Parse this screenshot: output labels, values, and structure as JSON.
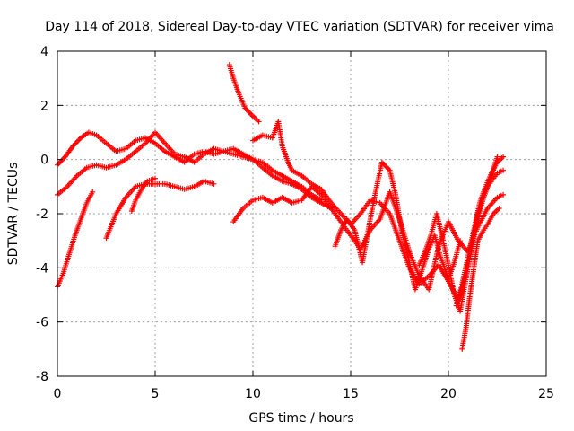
{
  "chart_data": {
    "type": "scatter",
    "title": "Day 114 of 2018, Sidereal Day-to-day VTEC variation (SDTVAR) for receiver vima",
    "xlabel": "GPS time / hours",
    "ylabel": "SDTVAR / TECUs",
    "xlim": [
      0,
      25
    ],
    "ylim": [
      -8,
      4
    ],
    "x_ticks": [
      "0",
      "5",
      "10",
      "15",
      "20",
      "25"
    ],
    "y_ticks": [
      "-8",
      "-6",
      "-4",
      "-2",
      "0",
      "2",
      "4"
    ],
    "x_tick_values": [
      0,
      5,
      10,
      15,
      20,
      25
    ],
    "y_tick_values": [
      -8,
      -6,
      -4,
      -2,
      0,
      2,
      4
    ],
    "grid": true,
    "marker": "+",
    "color": "#ff0000",
    "series": [
      {
        "x": [
          0.0,
          0.4,
          0.8,
          1.2,
          1.6,
          2.0,
          2.5,
          3.0,
          3.5,
          4.0,
          4.5,
          5.0,
          5.5,
          6.0,
          6.5,
          7.0,
          7.5,
          8.0,
          8.5,
          9.0,
          9.5,
          10.0,
          10.5,
          11.0,
          11.5,
          12.0,
          12.5,
          13.0,
          13.5,
          14.0
        ],
        "y": [
          -0.2,
          0.1,
          0.5,
          0.8,
          1.0,
          0.9,
          0.6,
          0.3,
          0.4,
          0.7,
          0.8,
          0.6,
          0.3,
          0.1,
          -0.1,
          0.2,
          0.3,
          0.2,
          0.3,
          0.4,
          0.2,
          0.0,
          -0.3,
          -0.6,
          -0.8,
          -0.9,
          -1.1,
          -1.4,
          -1.6,
          -1.8
        ]
      },
      {
        "x": [
          0.0,
          0.5,
          1.0,
          1.5,
          2.0,
          2.5,
          3.0,
          3.5,
          4.0,
          4.5,
          5.0,
          5.5,
          6.0,
          6.5,
          7.0,
          7.5,
          8.0,
          8.5,
          9.0,
          9.5,
          10.0,
          10.5,
          11.0,
          11.5,
          12.0,
          12.5,
          13.0,
          13.5
        ],
        "y": [
          -1.3,
          -1.0,
          -0.6,
          -0.3,
          -0.2,
          -0.3,
          -0.2,
          0.0,
          0.3,
          0.6,
          1.0,
          0.6,
          0.2,
          0.1,
          -0.1,
          0.2,
          0.4,
          0.3,
          0.2,
          0.1,
          0.0,
          -0.1,
          -0.4,
          -0.6,
          -0.8,
          -1.0,
          -1.3,
          -1.5
        ]
      },
      {
        "x": [
          0.0,
          0.3,
          0.6,
          0.9,
          1.2,
          1.5,
          1.8
        ],
        "y": [
          -4.7,
          -4.2,
          -3.5,
          -2.8,
          -2.2,
          -1.6,
          -1.2
        ]
      },
      {
        "x": [
          2.5,
          3.0,
          3.5,
          4.0,
          4.5,
          5.0,
          5.5,
          6.0,
          6.5,
          7.0,
          7.5,
          8.0
        ],
        "y": [
          -2.9,
          -2.0,
          -1.4,
          -1.0,
          -0.9,
          -0.9,
          -0.9,
          -1.0,
          -1.1,
          -1.0,
          -0.8,
          -0.9
        ]
      },
      {
        "x": [
          3.8,
          4.0,
          4.3,
          4.6,
          5.0
        ],
        "y": [
          -1.9,
          -1.5,
          -1.1,
          -0.8,
          -0.7
        ]
      },
      {
        "x": [
          8.8,
          9.0,
          9.3,
          9.6,
          10.0,
          10.3
        ],
        "y": [
          3.5,
          3.0,
          2.4,
          1.9,
          1.6,
          1.4
        ]
      },
      {
        "x": [
          10.0,
          10.5,
          11.0,
          11.3,
          11.5,
          11.8,
          12.0,
          12.5,
          13.0,
          13.5,
          14.0,
          14.5,
          15.0,
          15.5,
          16.0,
          16.5,
          17.0,
          17.5,
          18.0,
          18.5,
          19.0,
          19.5,
          20.0,
          20.5,
          21.0,
          21.5,
          22.0,
          22.5,
          22.8
        ],
        "y": [
          0.7,
          0.9,
          0.8,
          1.4,
          0.5,
          -0.1,
          -0.4,
          -0.6,
          -0.9,
          -1.1,
          -1.6,
          -2.0,
          -2.4,
          -2.0,
          -1.5,
          -1.6,
          -2.0,
          -3.0,
          -4.0,
          -4.6,
          -4.3,
          -3.9,
          -4.5,
          -5.2,
          -4.0,
          -2.0,
          -1.0,
          -0.5,
          -0.4
        ]
      },
      {
        "x": [
          9.0,
          9.5,
          10.0,
          10.5,
          11.0,
          11.5,
          12.0,
          12.5,
          13.0,
          13.5,
          14.0,
          14.5,
          15.0,
          15.5,
          16.0,
          16.5,
          17.0,
          17.5,
          18.0,
          18.5,
          19.0,
          19.5,
          20.0,
          20.5,
          21.0,
          21.5,
          22.0,
          22.5,
          22.8
        ],
        "y": [
          -2.3,
          -1.8,
          -1.5,
          -1.4,
          -1.6,
          -1.4,
          -1.6,
          -1.5,
          -1.0,
          -1.3,
          -1.8,
          -2.3,
          -2.8,
          -3.3,
          -2.6,
          -2.2,
          -1.2,
          -2.2,
          -3.4,
          -4.3,
          -4.8,
          -3.2,
          -2.3,
          -3.0,
          -3.4,
          -2.5,
          -1.8,
          -1.4,
          -1.3
        ]
      },
      {
        "x": [
          14.2,
          14.5,
          14.8,
          15.2,
          15.6,
          16.0,
          16.3,
          16.6,
          17.0,
          17.3,
          17.6,
          18.0,
          18.3,
          18.6,
          19.0,
          19.3,
          19.6,
          20.0,
          20.3,
          20.6
        ],
        "y": [
          -3.2,
          -2.6,
          -2.2,
          -2.6,
          -3.8,
          -2.2,
          -1.1,
          -0.1,
          -0.4,
          -1.3,
          -2.6,
          -3.8,
          -4.8,
          -4.2,
          -3.3,
          -2.8,
          -3.6,
          -4.4,
          -3.8,
          -3.0
        ]
      },
      {
        "x": [
          20.7,
          20.9,
          21.1,
          21.3,
          21.5,
          21.8,
          22.0,
          22.3,
          22.6
        ],
        "y": [
          -7.0,
          -6.2,
          -5.0,
          -4.0,
          -3.0,
          -2.6,
          -2.4,
          -2.0,
          -1.8
        ]
      },
      {
        "x": [
          20.4,
          20.7,
          21.0,
          21.3,
          21.6,
          21.9,
          22.2,
          22.5,
          22.8
        ],
        "y": [
          -5.4,
          -4.6,
          -3.6,
          -2.6,
          -1.6,
          -1.0,
          -0.5,
          -0.1,
          0.1
        ]
      },
      {
        "x": [
          18.5,
          18.8,
          19.1,
          19.4,
          19.7,
          20.0,
          20.3,
          20.6,
          21.0,
          21.4,
          21.8,
          22.2,
          22.5
        ],
        "y": [
          -3.9,
          -3.4,
          -2.8,
          -2.0,
          -2.9,
          -3.9,
          -5.0,
          -5.6,
          -4.0,
          -2.4,
          -1.4,
          -0.6,
          0.1
        ]
      }
    ]
  }
}
